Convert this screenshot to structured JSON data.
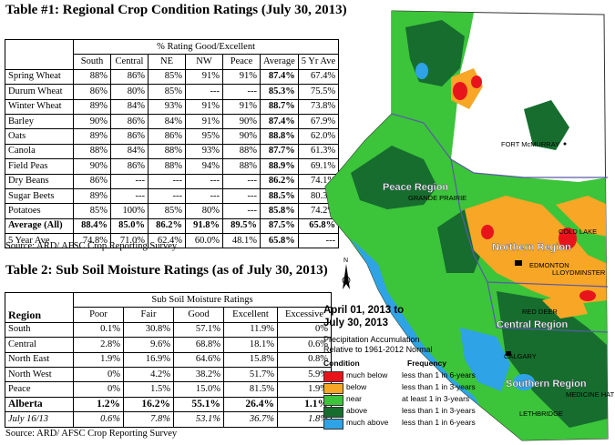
{
  "table1": {
    "title": "Table #1: Regional Crop Condition Ratings (July 30, 2013)",
    "group_header": "% Rating Good/Excellent",
    "columns": [
      "South",
      "Central",
      "NE",
      "NW",
      "Peace",
      "Average",
      "5 Yr Ave"
    ],
    "rows": [
      {
        "label": "Spring Wheat",
        "values": [
          "88%",
          "86%",
          "85%",
          "91%",
          "91%",
          "87.4%",
          "67.4%"
        ]
      },
      {
        "label": "Durum Wheat",
        "values": [
          "86%",
          "80%",
          "85%",
          "---",
          "---",
          "85.3%",
          "75.5%"
        ]
      },
      {
        "label": "Winter Wheat",
        "values": [
          "89%",
          "84%",
          "93%",
          "91%",
          "91%",
          "88.7%",
          "73.8%"
        ]
      },
      {
        "label": "Barley",
        "values": [
          "90%",
          "86%",
          "84%",
          "91%",
          "90%",
          "87.4%",
          "67.9%"
        ]
      },
      {
        "label": "Oats",
        "values": [
          "89%",
          "86%",
          "86%",
          "95%",
          "90%",
          "88.8%",
          "62.0%"
        ]
      },
      {
        "label": "Canola",
        "values": [
          "88%",
          "84%",
          "88%",
          "93%",
          "88%",
          "87.7%",
          "61.3%"
        ]
      },
      {
        "label": "Field Peas",
        "values": [
          "90%",
          "86%",
          "88%",
          "94%",
          "88%",
          "88.9%",
          "69.1%"
        ]
      },
      {
        "label": "Dry Beans",
        "values": [
          "86%",
          "---",
          "---",
          "---",
          "---",
          "86.2%",
          "74.1%"
        ]
      },
      {
        "label": "Sugar Beets",
        "values": [
          "89%",
          "---",
          "---",
          "---",
          "---",
          "88.5%",
          "80.3%"
        ]
      },
      {
        "label": "Potatoes",
        "values": [
          "85%",
          "100%",
          "85%",
          "80%",
          "---",
          "85.8%",
          "74.2%"
        ]
      }
    ],
    "average_row": {
      "label": "Average (All)",
      "values": [
        "88.4%",
        "85.0%",
        "86.2%",
        "91.8%",
        "89.5%",
        "87.5%",
        "65.8%"
      ]
    },
    "five_year_row": {
      "label": "5 Year Ave",
      "values": [
        "74.8%",
        "71.0%",
        "62.4%",
        "60.0%",
        "48.1%",
        "65.8%",
        "---"
      ]
    },
    "source": "Source: ARD/ AFSC Crop Reporting Survey"
  },
  "table2": {
    "title": "Table 2: Sub Soil Moisture Ratings (as of July 30, 2013)",
    "group_header": "Sub Soil Moisture Ratings",
    "region_label": "Region",
    "columns": [
      "Poor",
      "Fair",
      "Good",
      "Excellent",
      "Excessive"
    ],
    "rows": [
      {
        "label": "South",
        "values": [
          "0.1%",
          "30.8%",
          "57.1%",
          "11.9%",
          "0%"
        ]
      },
      {
        "label": "Central",
        "values": [
          "2.8%",
          "9.6%",
          "68.8%",
          "18.1%",
          "0.6%"
        ]
      },
      {
        "label": "North East",
        "values": [
          "1.9%",
          "16.9%",
          "64.6%",
          "15.8%",
          "0.8%"
        ]
      },
      {
        "label": "North West",
        "values": [
          "0%",
          "4.2%",
          "38.2%",
          "51.7%",
          "5.9%"
        ]
      },
      {
        "label": "Peace",
        "values": [
          "0%",
          "1.5%",
          "15.0%",
          "81.5%",
          "1.9%"
        ]
      }
    ],
    "alberta_row": {
      "label": "Alberta",
      "values": [
        "1.2%",
        "16.2%",
        "55.1%",
        "26.4%",
        "1.1%"
      ]
    },
    "prior_row": {
      "label": "July 16/13",
      "values": [
        "0.6%",
        "7.8%",
        "53.1%",
        "36.7%",
        "1.8%"
      ]
    },
    "source": "Source: ARD/ AFSC Crop Reporting Survey"
  },
  "map": {
    "title": "April 01, 2013 to July 30, 2013",
    "title_line1": "April 01, 2013 to",
    "title_line2": "July 30, 2013",
    "subtitle_line1": "Precipitation Accumulation",
    "subtitle_line2": "Relative to 1961-2012 Normal",
    "condition_header": "Condition",
    "frequency_header": "Frequency",
    "north_arrow": "N",
    "region_labels": {
      "peace": "Peace Region",
      "northern": "Northern Region",
      "central": "Central Region",
      "southern": "Southern Region"
    },
    "cities": {
      "fort_mcmurray": "FORT McMURRAY",
      "grande_prairie": "GRANDE PRAIRIE",
      "cold_lake": "COLD LAKE",
      "edmonton": "EDMONTON",
      "lloydminster": "LLOYDMINSTER",
      "red_deer": "RED DEER",
      "calgary": "CALGARY",
      "medicine_hat": "MEDICINE HAT",
      "lethbridge": "LETHBRIDGE"
    },
    "legend": [
      {
        "condition": "much below",
        "frequency": "less than 1 in 6-years",
        "color": "#e8141c"
      },
      {
        "condition": "below",
        "frequency": "less than 1 in 3-years",
        "color": "#f7a626"
      },
      {
        "condition": "near",
        "frequency": "at least 1 in 3-years",
        "color": "#3cc43a"
      },
      {
        "condition": "above",
        "frequency": "less than 1 in 3-years",
        "color": "#166d2e"
      },
      {
        "condition": "much above",
        "frequency": "less than 1 in 6-years",
        "color": "#2ea3e6"
      }
    ]
  }
}
